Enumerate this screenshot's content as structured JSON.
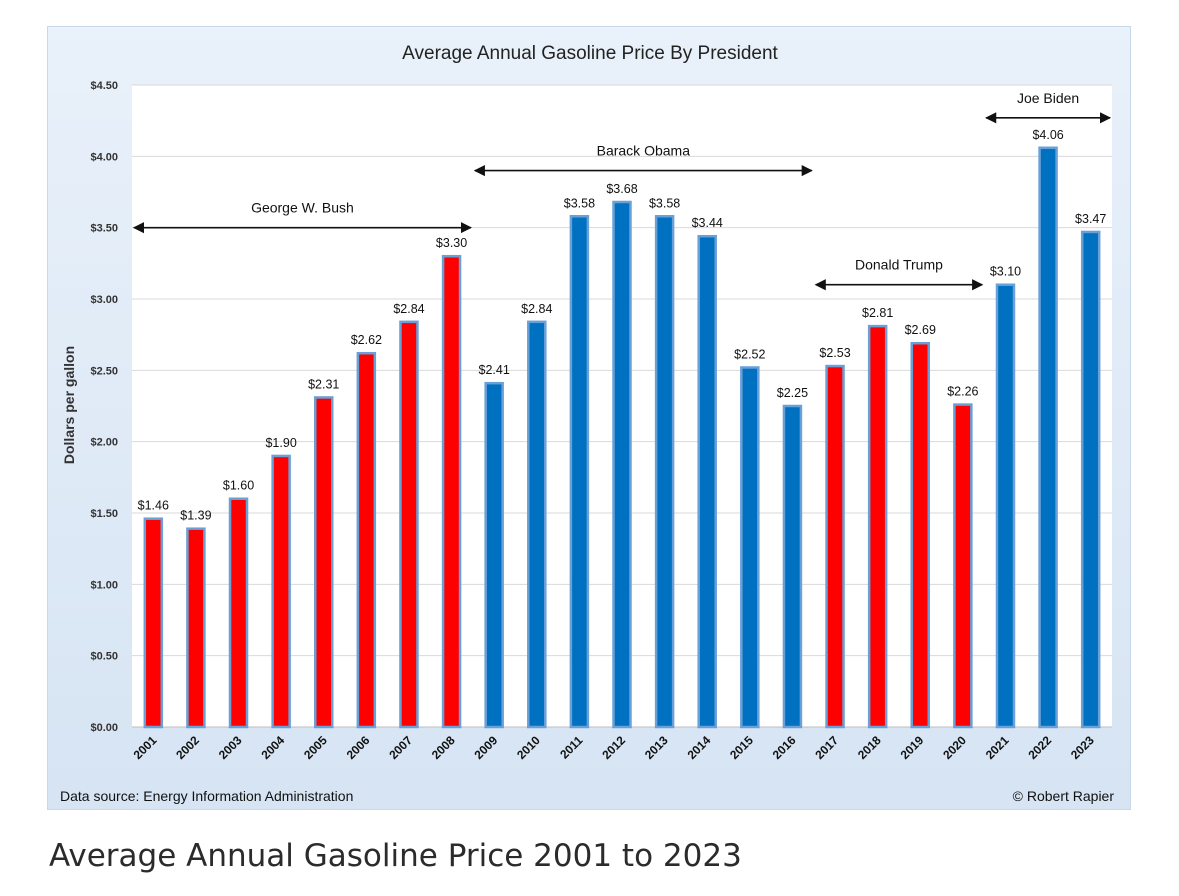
{
  "chart_data": {
    "type": "bar",
    "title": "Average Annual Gasoline Price By President",
    "ylabel": "Dollars per gallon",
    "xlabel": "",
    "ylim": [
      0,
      4.5
    ],
    "yticks": [
      "$0.00",
      "$0.50",
      "$1.00",
      "$1.50",
      "$2.00",
      "$2.50",
      "$3.00",
      "$3.50",
      "$4.00",
      "$4.50"
    ],
    "yticks_values": [
      0,
      0.5,
      1.0,
      1.5,
      2.0,
      2.5,
      3.0,
      3.5,
      4.0,
      4.5
    ],
    "grid": true,
    "categories": [
      "2001",
      "2002",
      "2003",
      "2004",
      "2005",
      "2006",
      "2007",
      "2008",
      "2009",
      "2010",
      "2011",
      "2012",
      "2013",
      "2014",
      "2015",
      "2016",
      "2017",
      "2018",
      "2019",
      "2020",
      "2021",
      "2022",
      "2023"
    ],
    "values": [
      1.46,
      1.39,
      1.6,
      1.9,
      2.31,
      2.62,
      2.84,
      3.3,
      2.41,
      2.84,
      3.58,
      3.68,
      3.58,
      3.44,
      2.52,
      2.25,
      2.53,
      2.81,
      2.69,
      2.26,
      3.1,
      4.06,
      3.47
    ],
    "data_labels": [
      "$1.46",
      "$1.39",
      "$1.60",
      "$1.90",
      "$2.31",
      "$2.62",
      "$2.84",
      "$3.30",
      "$2.41",
      "$2.84",
      "$3.58",
      "$3.68",
      "$3.58",
      "$3.44",
      "$2.52",
      "$2.25",
      "$2.53",
      "$2.81",
      "$2.69",
      "$2.26",
      "$3.10",
      "$4.06",
      "$3.47"
    ],
    "bar_colors": [
      "#ff0000",
      "#ff0000",
      "#ff0000",
      "#ff0000",
      "#ff0000",
      "#ff0000",
      "#ff0000",
      "#ff0000",
      "#0070c0",
      "#0070c0",
      "#0070c0",
      "#0070c0",
      "#0070c0",
      "#0070c0",
      "#0070c0",
      "#0070c0",
      "#ff0000",
      "#ff0000",
      "#ff0000",
      "#ff0000",
      "#0070c0",
      "#0070c0",
      "#0070c0"
    ],
    "annotations": [
      {
        "text": "George W. Bush",
        "from": "2001",
        "to": "2008",
        "y": 3.5
      },
      {
        "text": "Barack Obama",
        "from": "2009",
        "to": "2016",
        "y": 3.9
      },
      {
        "text": "Donald Trump",
        "from": "2017",
        "to": "2020",
        "y": 3.1
      },
      {
        "text": "Joe Biden",
        "from": "2021",
        "to": "2023",
        "y": 4.27
      }
    ],
    "footer_left": "Data source: Energy Information Administration",
    "footer_right": "© Robert Rapier"
  },
  "caption": "Average Annual Gasoline Price 2001 to 2023",
  "colors": {
    "republican": "#ff0000",
    "democrat": "#0070c0",
    "bar_outline": "#6aa0d8"
  }
}
